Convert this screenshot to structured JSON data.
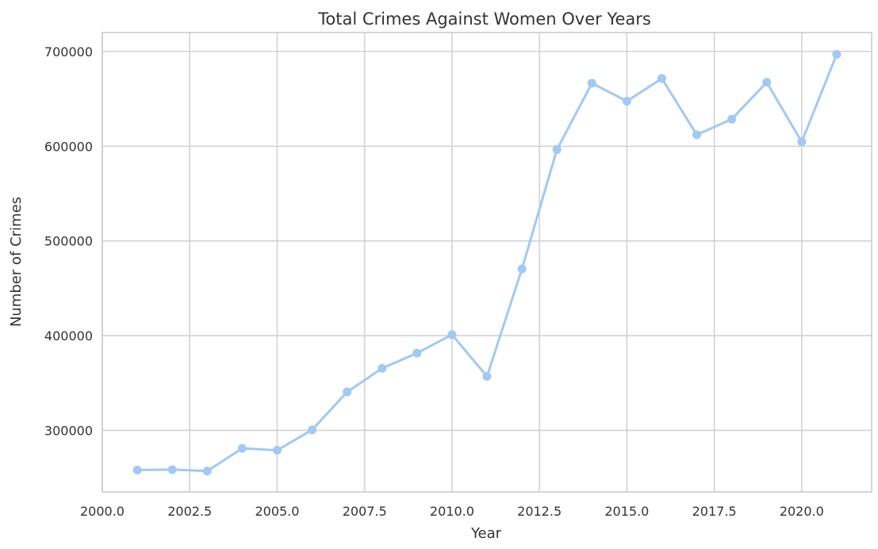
{
  "chart_data": {
    "type": "line",
    "title": "Total Crimes Against Women Over Years",
    "xlabel": "Year",
    "ylabel": "Number of Crimes",
    "xlim": [
      2000,
      2022
    ],
    "ylim": [
      235000,
      720000
    ],
    "x_ticks": [
      2000.0,
      2002.5,
      2005.0,
      2007.5,
      2010.0,
      2012.5,
      2015.0,
      2017.5,
      2020.0
    ],
    "x_tick_labels": [
      "2000.0",
      "2002.5",
      "2005.0",
      "2007.5",
      "2010.0",
      "2012.5",
      "2015.0",
      "2017.5",
      "2020.0"
    ],
    "y_ticks": [
      300000,
      400000,
      500000,
      600000,
      700000
    ],
    "y_tick_labels": [
      "300000",
      "400000",
      "500000",
      "600000",
      "700000"
    ],
    "grid": true,
    "series": [
      {
        "color": "#a1c9f4",
        "marker": "circle",
        "x": [
          2001,
          2002,
          2003,
          2004,
          2005,
          2006,
          2007,
          2008,
          2009,
          2010,
          2011,
          2012,
          2013,
          2014,
          2015,
          2016,
          2017,
          2018,
          2019,
          2020,
          2021
        ],
        "values": [
          258000,
          258500,
          257000,
          281000,
          279000,
          300500,
          340500,
          365500,
          381500,
          401000,
          357000,
          470500,
          596500,
          666500,
          647500,
          671500,
          612000,
          628500,
          667500,
          604500,
          697000
        ]
      }
    ]
  }
}
